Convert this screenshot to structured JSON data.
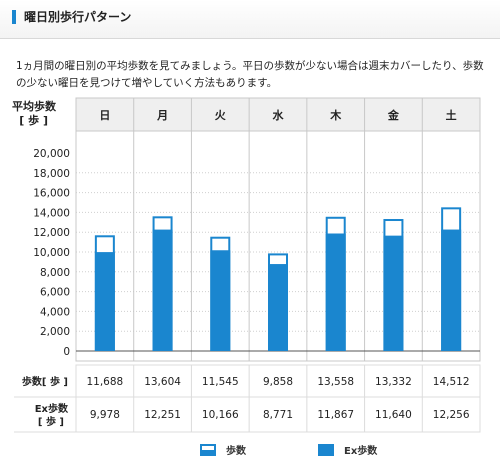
{
  "section": {
    "title": "曜日別歩行パターン",
    "description": "1ヵ月間の曜日別の平均歩数を見てみましょう。平日の歩数が少ない場合は週末カバーしたり、歩数の少ない曜日を見つけて増やしていく方法もあります。"
  },
  "chart_data": {
    "type": "bar",
    "ylabel_line1": "平均歩数",
    "ylabel_line2": "[ 歩 ]",
    "categories": [
      "日",
      "月",
      "火",
      "水",
      "木",
      "金",
      "土"
    ],
    "yticks": [
      "20,000",
      "18,000",
      "16,000",
      "14,000",
      "12,000",
      "10,000",
      "8,000",
      "6,000",
      "4,000",
      "2,000",
      "0"
    ],
    "ylim": [
      0,
      21000
    ],
    "series": [
      {
        "name": "歩数",
        "values": [
          11688,
          13604,
          11545,
          9858,
          13558,
          13332,
          14512
        ],
        "color": "#1a86cf",
        "style": "outline"
      },
      {
        "name": "Ex歩数",
        "values": [
          9978,
          12251,
          10166,
          8771,
          11867,
          11640,
          12256
        ],
        "color": "#1a86cf",
        "style": "filled"
      }
    ],
    "table": {
      "rows": [
        {
          "label_line1": "歩数[ 歩 ]",
          "label_line2": "",
          "values": [
            "11,688",
            "13,604",
            "11,545",
            "9,858",
            "13,558",
            "13,332",
            "14,512"
          ]
        },
        {
          "label_line1": "Ex歩数",
          "label_line2": "[ 歩 ]",
          "values": [
            "9,978",
            "12,251",
            "10,166",
            "8,771",
            "11,867",
            "11,640",
            "12,256"
          ]
        }
      ]
    },
    "grid": true,
    "legend_position": "bottom"
  }
}
